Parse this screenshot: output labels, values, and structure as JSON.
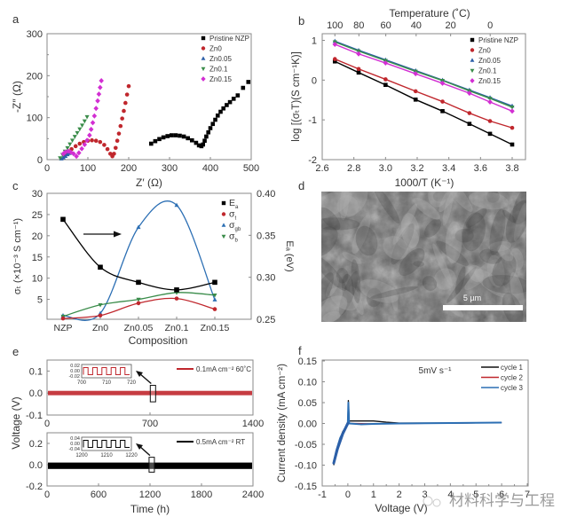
{
  "panel_letters": {
    "a": "a",
    "b": "b",
    "c": "c",
    "d": "d",
    "e": "e",
    "f": "f"
  },
  "chart_data": [
    {
      "id": "a",
      "type": "scatter",
      "title": "",
      "xlabel": "Z′ (Ω)",
      "ylabel": "-Z″ (Ω)",
      "xlim": [
        0,
        500
      ],
      "ylim": [
        0,
        300
      ],
      "xticks": [
        0,
        100,
        200,
        300,
        400,
        500
      ],
      "yticks": [
        0,
        100,
        200,
        300
      ],
      "legend_position": "top-right",
      "series": [
        {
          "name": "Pristine NZP",
          "color": "#000000",
          "marker": "square",
          "points": [
            [
              255,
              38
            ],
            [
              265,
              44
            ],
            [
              275,
              49
            ],
            [
              285,
              53
            ],
            [
              295,
              56
            ],
            [
              305,
              58
            ],
            [
              315,
              58
            ],
            [
              325,
              57
            ],
            [
              335,
              55
            ],
            [
              345,
              51
            ],
            [
              355,
              46
            ],
            [
              365,
              40
            ],
            [
              372,
              34
            ],
            [
              378,
              32
            ],
            [
              382,
              36
            ],
            [
              386,
              45
            ],
            [
              390,
              55
            ],
            [
              395,
              65
            ],
            [
              400,
              75
            ],
            [
              406,
              85
            ],
            [
              412,
              95
            ],
            [
              418,
              105
            ],
            [
              425,
              114
            ],
            [
              432,
              122
            ],
            [
              440,
              130
            ],
            [
              448,
              137
            ],
            [
              457,
              145
            ],
            [
              467,
              153
            ],
            [
              480,
              171
            ],
            [
              493,
              185
            ]
          ]
        },
        {
          "name": "Zn0",
          "color": "#c0272d",
          "marker": "circle",
          "points": [
            [
              45,
              12
            ],
            [
              52,
              18
            ],
            [
              60,
              25
            ],
            [
              70,
              32
            ],
            [
              80,
              38
            ],
            [
              90,
              42
            ],
            [
              100,
              45
            ],
            [
              110,
              46
            ],
            [
              120,
              45
            ],
            [
              130,
              42
            ],
            [
              140,
              35
            ],
            [
              148,
              25
            ],
            [
              155,
              14
            ],
            [
              160,
              8
            ],
            [
              164,
              14
            ],
            [
              168,
              28
            ],
            [
              172,
              45
            ],
            [
              176,
              62
            ],
            [
              180,
              80
            ],
            [
              184,
              98
            ],
            [
              188,
              116
            ],
            [
              192,
              135
            ],
            [
              196,
              155
            ],
            [
              200,
              175
            ]
          ]
        },
        {
          "name": "Zn0.05",
          "color": "#2c5fa8",
          "marker": "triangle-up",
          "points": [
            [
              35,
              2
            ],
            [
              40,
              5
            ],
            [
              45,
              8
            ],
            [
              50,
              12
            ],
            [
              55,
              15
            ]
          ]
        },
        {
          "name": "Zn0.1",
          "color": "#3a8c4a",
          "marker": "triangle-down",
          "points": [
            [
              32,
              4
            ],
            [
              38,
              12
            ],
            [
              44,
              20
            ],
            [
              50,
              28
            ],
            [
              56,
              37
            ],
            [
              62,
              46
            ],
            [
              68,
              55
            ],
            [
              74,
              64
            ],
            [
              80,
              73
            ],
            [
              86,
              82
            ],
            [
              92,
              92
            ],
            [
              98,
              102
            ]
          ]
        },
        {
          "name": "Zn0.15",
          "color": "#d22ed2",
          "marker": "diamond",
          "points": [
            [
              40,
              14
            ],
            [
              45,
              18
            ],
            [
              52,
              20
            ],
            [
              58,
              18
            ],
            [
              65,
              14
            ],
            [
              72,
              8
            ],
            [
              78,
              16
            ],
            [
              85,
              26
            ],
            [
              92,
              36
            ],
            [
              98,
              46
            ],
            [
              104,
              58
            ],
            [
              108,
              72
            ],
            [
              112,
              88
            ],
            [
              116,
              104
            ],
            [
              120,
              122
            ],
            [
              124,
              140
            ],
            [
              127,
              156
            ],
            [
              130,
              172
            ],
            [
              133,
              188
            ]
          ]
        }
      ]
    },
    {
      "id": "b",
      "type": "line",
      "title": "",
      "xlabel": "1000/T (K⁻¹)",
      "ylabel": "log [(σₜT)(S cm⁻¹K)]",
      "top_xlabel": "Temperature (˚C)",
      "xlim": [
        2.6,
        3.85
      ],
      "ylim": [
        -2,
        1.2
      ],
      "xticks": [
        2.6,
        2.8,
        3.0,
        3.2,
        3.4,
        3.6,
        3.8
      ],
      "xtick_labels": [
        "2.6",
        "2.8",
        "3.0",
        "3.2",
        "3.4",
        "3.6",
        "3.8"
      ],
      "yticks": [
        -2,
        -1,
        0,
        1
      ],
      "top_xticks_celsius": [
        100,
        80,
        60,
        40,
        20,
        0
      ],
      "legend_position": "top-right",
      "x": [
        2.68,
        2.83,
        3.0,
        3.19,
        3.36,
        3.53,
        3.66,
        3.8
      ],
      "series": [
        {
          "name": "Pristine NZP",
          "color": "#000000",
          "marker": "square",
          "values": [
            0.47,
            0.19,
            -0.12,
            -0.49,
            -0.78,
            -1.1,
            -1.35,
            -1.62
          ]
        },
        {
          "name": "Zn0",
          "color": "#c0272d",
          "marker": "circle",
          "values": [
            0.53,
            0.28,
            0.02,
            -0.28,
            -0.54,
            -0.83,
            -1.03,
            -1.2
          ]
        },
        {
          "name": "Zn0.05",
          "color": "#2c5fa8",
          "marker": "triangle-up",
          "values": [
            0.98,
            0.75,
            0.51,
            0.24,
            0.0,
            -0.25,
            -0.44,
            -0.65
          ]
        },
        {
          "name": "Zn0.1",
          "color": "#3a8c4a",
          "marker": "triangle-down",
          "values": [
            0.96,
            0.73,
            0.49,
            0.22,
            -0.01,
            -0.27,
            -0.46,
            -0.68
          ]
        },
        {
          "name": "Zn0.15",
          "color": "#d22ed2",
          "marker": "diamond",
          "values": [
            0.9,
            0.66,
            0.43,
            0.16,
            -0.08,
            -0.33,
            -0.55,
            -0.78
          ]
        }
      ]
    },
    {
      "id": "c",
      "type": "line",
      "title": "",
      "xlabel": "Composition",
      "ylabel": "σₜ (×10⁻³ S cm⁻¹)",
      "ylabel_right": "Eₐ (eV)",
      "categories": [
        "NZP",
        "Zn0",
        "Zn0.05",
        "Zn0.1",
        "Zn0.15"
      ],
      "ylim": [
        0,
        30
      ],
      "yticks": [
        5,
        10,
        15,
        20,
        25,
        30
      ],
      "ylim_right": [
        0.25,
        0.4
      ],
      "yticks_right": [
        0.25,
        0.3,
        0.35,
        0.4
      ],
      "ytick_labels_right": [
        "0.25",
        "0.30",
        "0.35",
        "0.40"
      ],
      "legend_position": "top-right",
      "annotation": "arrow pointing right (Eₐ uses right axis)",
      "series": [
        {
          "name": "Eₐ",
          "legend_main": "E",
          "legend_sub": "a",
          "color": "#000000",
          "marker": "square",
          "axis": "right",
          "values": [
            0.369,
            0.312,
            0.294,
            0.285,
            0.294
          ]
        },
        {
          "name": "σₜ",
          "legend_main": "σ",
          "legend_sub": "t",
          "color": "#c0272d",
          "marker": "circle",
          "axis": "left",
          "values": [
            0.5,
            1.2,
            4.1,
            5.2,
            2.7
          ]
        },
        {
          "name": "σgb",
          "legend_main": "σ",
          "legend_sub": "gb",
          "color": "#2c6fb4",
          "marker": "triangle-up",
          "axis": "left",
          "values": [
            1.2,
            1.7,
            22.0,
            27.2,
            4.9
          ]
        },
        {
          "name": "σb",
          "legend_main": "σ",
          "legend_sub": "b",
          "color": "#3a8c4a",
          "marker": "triangle-down",
          "axis": "left",
          "values": [
            1.0,
            3.7,
            5.0,
            6.6,
            6.0
          ]
        }
      ]
    },
    {
      "id": "e-top",
      "type": "line",
      "title": "",
      "xlabel": "",
      "ylabel": "Voltage (V)",
      "xlim": [
        0,
        1400
      ],
      "xticks": [
        0,
        700,
        1400
      ],
      "ylim": [
        -0.1,
        0.15
      ],
      "yticks": [
        -0.1,
        0.0,
        0.1
      ],
      "ytick_labels": [
        "-0.1",
        "0.0",
        "0.1"
      ],
      "legend_position": "top-right",
      "series": [
        {
          "name": "0.1mA cm⁻² 60˚C",
          "color": "#c0272d",
          "band": [
            -0.01,
            0.01
          ]
        }
      ],
      "inset": {
        "xlim": [
          700,
          720
        ],
        "xticks": [
          700,
          710,
          720
        ],
        "yticks": [
          "0.02",
          "0.00",
          "-0.02"
        ],
        "periods": 5,
        "amplitude": 0.01,
        "color": "#c0272d"
      },
      "highlight_x": 720
    },
    {
      "id": "e-bottom",
      "type": "line",
      "title": "",
      "xlabel": "Time (h)",
      "ylabel": "Voltage (V)",
      "xlim": [
        0,
        2400
      ],
      "xticks": [
        0,
        600,
        1200,
        1800,
        2400
      ],
      "ylim": [
        -0.2,
        0.3
      ],
      "yticks": [
        -0.2,
        0.0,
        0.2
      ],
      "ytick_labels": [
        "-0.2",
        "0.0",
        "0.2"
      ],
      "legend_position": "top-right",
      "series": [
        {
          "name": "0.5mA cm⁻² RT",
          "color": "#000000",
          "band": [
            -0.04,
            0.02
          ]
        }
      ],
      "inset": {
        "xlim": [
          1200,
          1220
        ],
        "xticks": [
          1200,
          1210,
          1220
        ],
        "yticks": [
          "0.04",
          "0.00",
          "-0.04"
        ],
        "periods": 5,
        "amplitude": 0.03,
        "color": "#000000"
      },
      "highlight_x": 1220
    },
    {
      "id": "f",
      "type": "line",
      "title": "",
      "annotation": "5mV s⁻¹",
      "xlabel": "Voltage (V)",
      "ylabel": "Current density (mA cm⁻²)",
      "xlim": [
        -1,
        7
      ],
      "xticks": [
        -1,
        0,
        1,
        2,
        3,
        4,
        5,
        6,
        7
      ],
      "ylim": [
        -0.15,
        0.15
      ],
      "yticks": [
        -0.15,
        -0.1,
        -0.05,
        0.0,
        0.05,
        0.1,
        0.15
      ],
      "ytick_labels": [
        "-0.15",
        "-0.10",
        "-0.05",
        "0.00",
        "0.05",
        "0.10",
        "0.15"
      ],
      "legend_position": "top-right",
      "series": [
        {
          "name": "cycle 1",
          "color": "#111111",
          "points": [
            [
              -0.55,
              -0.1
            ],
            [
              -0.5,
              -0.08
            ],
            [
              -0.35,
              -0.045
            ],
            [
              -0.2,
              -0.02
            ],
            [
              0,
              0
            ],
            [
              0.02,
              0.055
            ],
            [
              0.05,
              0.006
            ],
            [
              0.5,
              0.006
            ],
            [
              1.0,
              0.006
            ],
            [
              1.5,
              0.003
            ],
            [
              2,
              0.001
            ],
            [
              4,
              0.001
            ],
            [
              6,
              0.002
            ]
          ]
        },
        {
          "name": "cycle 2",
          "color": "#c0272d",
          "points": [
            [
              -0.55,
              -0.095
            ],
            [
              -0.4,
              -0.06
            ],
            [
              -0.2,
              -0.025
            ],
            [
              0,
              -0.002
            ],
            [
              0.02,
              0.04
            ],
            [
              0.05,
              0.0
            ],
            [
              1,
              -0.001
            ],
            [
              2,
              0.0
            ],
            [
              4,
              0.001
            ],
            [
              6,
              0.002
            ]
          ]
        },
        {
          "name": "cycle 3",
          "color": "#2c6fb4",
          "points": [
            [
              -0.55,
              -0.092
            ],
            [
              -0.45,
              -0.065
            ],
            [
              -0.3,
              -0.035
            ],
            [
              -0.1,
              -0.01
            ],
            [
              0,
              0.003
            ],
            [
              0.02,
              0.05
            ],
            [
              0.05,
              0.0
            ],
            [
              0.5,
              -0.002
            ],
            [
              1,
              -0.001
            ],
            [
              2,
              0.0
            ],
            [
              4,
              0.001
            ],
            [
              6,
              0.002
            ]
          ]
        }
      ]
    }
  ],
  "sem_image": {
    "scale_bar_label": "5 µm",
    "description": "SEM micrograph of fractured ceramic surface"
  },
  "watermark": {
    "text": "材料科学与工程"
  }
}
